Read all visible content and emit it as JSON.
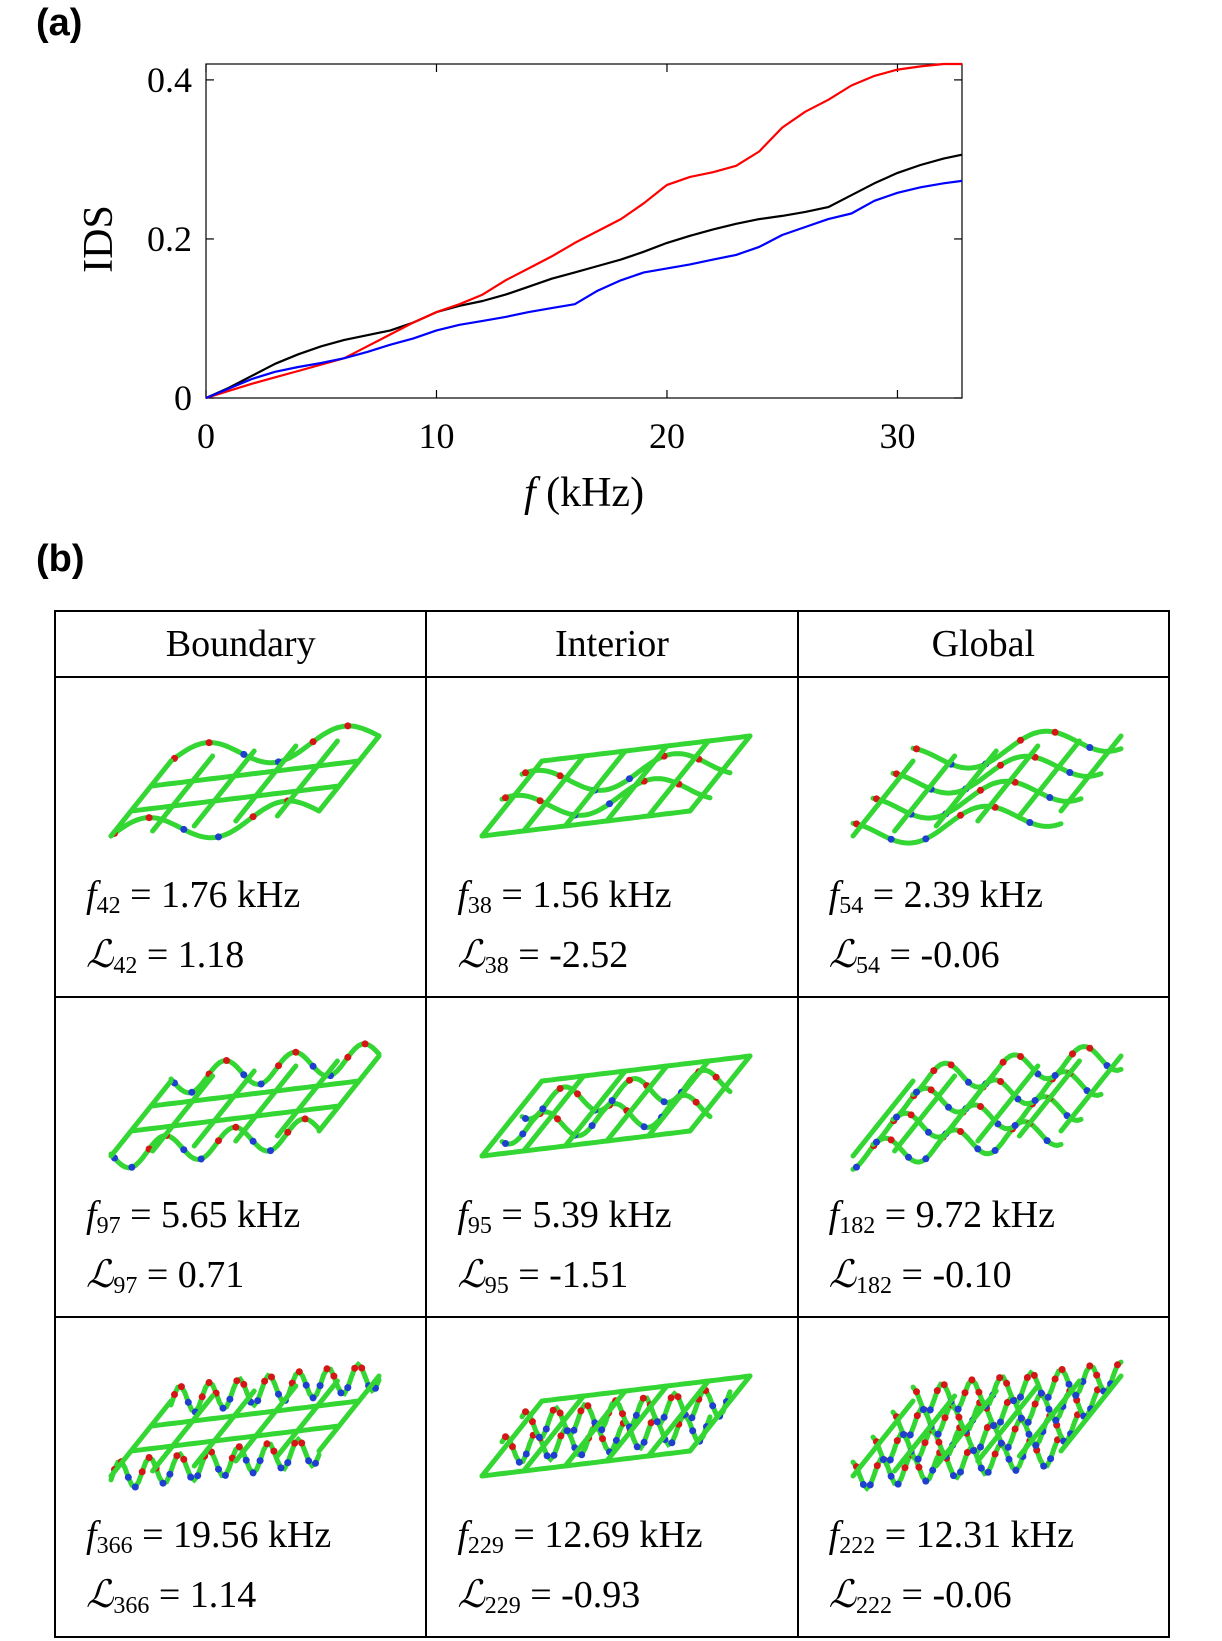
{
  "panel_a_label": "(a)",
  "panel_b_label": "(b)",
  "chart_data": {
    "type": "line",
    "xlabel_italic": "f",
    "xlabel_unit": "(kHz)",
    "ylabel": "IDS",
    "xlim": [
      0,
      32.8
    ],
    "ylim": [
      0,
      0.42
    ],
    "xticks": [
      0,
      10,
      20,
      30
    ],
    "xtick_labels": [
      "0",
      "10",
      "20",
      "30"
    ],
    "yticks": [
      0,
      0.2,
      0.4
    ],
    "ytick_labels": [
      "0",
      "0.2",
      "0.4"
    ],
    "grid": false,
    "series": [
      {
        "name": "black",
        "color": "#000000",
        "x": [
          0,
          1,
          2,
          3,
          4,
          5,
          6,
          7,
          8,
          9,
          10,
          11,
          12,
          13,
          14,
          15,
          16,
          17,
          18,
          19,
          20,
          21,
          22,
          23,
          24,
          25,
          26,
          27,
          28,
          29,
          30,
          31,
          32,
          32.8
        ],
        "y": [
          0,
          0.013,
          0.028,
          0.043,
          0.055,
          0.065,
          0.073,
          0.079,
          0.085,
          0.095,
          0.108,
          0.116,
          0.122,
          0.13,
          0.14,
          0.15,
          0.158,
          0.166,
          0.174,
          0.184,
          0.195,
          0.204,
          0.212,
          0.219,
          0.225,
          0.229,
          0.234,
          0.24,
          0.255,
          0.27,
          0.283,
          0.293,
          0.301,
          0.306
        ]
      },
      {
        "name": "red",
        "color": "#ff0000",
        "x": [
          0,
          1,
          2,
          3,
          4,
          5,
          6,
          7,
          8,
          9,
          10,
          11,
          12,
          13,
          14,
          15,
          16,
          17,
          18,
          19,
          20,
          21,
          22,
          23,
          24,
          25,
          26,
          27,
          28,
          29,
          30,
          31,
          32,
          32.8
        ],
        "y": [
          0,
          0.009,
          0.018,
          0.026,
          0.034,
          0.042,
          0.05,
          0.065,
          0.08,
          0.095,
          0.108,
          0.118,
          0.13,
          0.148,
          0.163,
          0.178,
          0.195,
          0.21,
          0.225,
          0.245,
          0.268,
          0.278,
          0.284,
          0.292,
          0.31,
          0.34,
          0.36,
          0.375,
          0.393,
          0.405,
          0.413,
          0.417,
          0.42,
          0.42
        ]
      },
      {
        "name": "blue",
        "color": "#0000ff",
        "x": [
          0,
          1,
          2,
          3,
          4,
          5,
          6,
          7,
          8,
          9,
          10,
          11,
          12,
          13,
          14,
          15,
          16,
          17,
          18,
          19,
          20,
          21,
          22,
          23,
          24,
          25,
          26,
          27,
          28,
          29,
          30,
          31,
          32,
          32.8
        ],
        "y": [
          0,
          0.012,
          0.024,
          0.033,
          0.039,
          0.044,
          0.05,
          0.058,
          0.067,
          0.075,
          0.085,
          0.092,
          0.097,
          0.102,
          0.108,
          0.113,
          0.118,
          0.135,
          0.148,
          0.158,
          0.163,
          0.168,
          0.174,
          0.18,
          0.19,
          0.205,
          0.215,
          0.225,
          0.232,
          0.248,
          0.258,
          0.265,
          0.27,
          0.273
        ]
      }
    ]
  },
  "table": {
    "headers": [
      "Boundary",
      "Interior",
      "Global"
    ],
    "rows": [
      [
        {
          "f_sub": "42",
          "f_val": "= 1.76 kHz",
          "L_sub": "42",
          "L_val": "= 1.18"
        },
        {
          "f_sub": "38",
          "f_val": "= 1.56 kHz",
          "L_sub": "38",
          "L_val": "= -2.52"
        },
        {
          "f_sub": "54",
          "f_val": "= 2.39 kHz",
          "L_sub": "54",
          "L_val": "= -0.06"
        }
      ],
      [
        {
          "f_sub": "97",
          "f_val": "= 5.65 kHz",
          "L_sub": "97",
          "L_val": "= 0.71"
        },
        {
          "f_sub": "95",
          "f_val": "= 5.39 kHz",
          "L_sub": "95",
          "L_val": "= -1.51"
        },
        {
          "f_sub": "182",
          "f_val": "= 9.72 kHz",
          "L_sub": "182",
          "L_val": "= -0.10"
        }
      ],
      [
        {
          "f_sub": "366",
          "f_val": "= 19.56 kHz",
          "L_sub": "366",
          "L_val": "= 1.14"
        },
        {
          "f_sub": "229",
          "f_val": "= 12.69 kHz",
          "L_sub": "229",
          "L_val": "= -0.93"
        },
        {
          "f_sub": "222",
          "f_val": "= 12.31 kHz",
          "L_sub": "222",
          "L_val": "= -0.06"
        }
      ]
    ]
  },
  "symbols": {
    "f": "f",
    "L": "ℒ"
  }
}
